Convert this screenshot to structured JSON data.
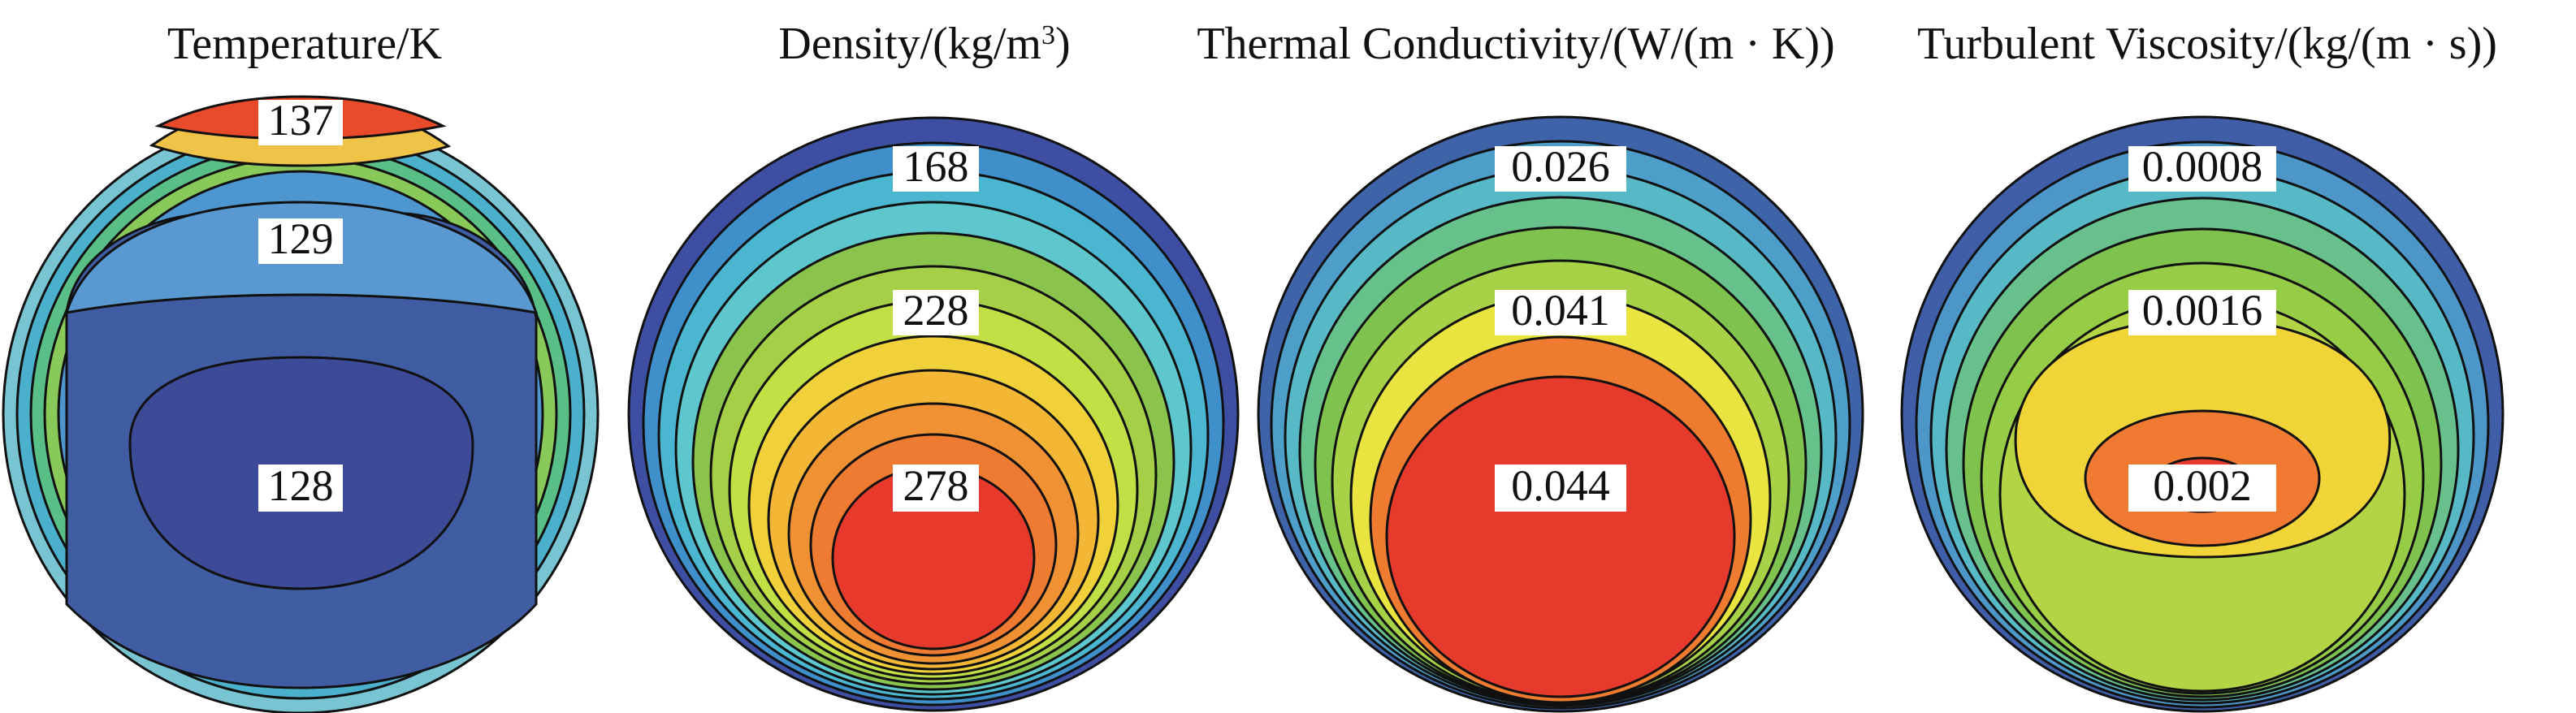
{
  "panels": [
    {
      "title_main": "Temperature/K",
      "title_sup": "",
      "title_tail": "",
      "labels": [
        "137",
        "129",
        "128"
      ],
      "colors": {
        "outer": "#7fc6d7",
        "ring1": "#e4e84b",
        "ring2": "#8ccf52",
        "ring3": "#6fc7c8",
        "ring4": "#4e96cf",
        "ring5": "#3f5ca3",
        "core": "#3d4a97",
        "hot": "#e84a2b"
      }
    },
    {
      "title_main": "Density/(kg/m",
      "title_sup": "3",
      "title_tail": ")",
      "labels": [
        "168",
        "228",
        "278"
      ],
      "colors": {
        "outer": "#3e4fa3",
        "ring1": "#3f8fcb",
        "ring2": "#5ec7ce",
        "ring3": "#8ac44d",
        "ring4": "#b9db45",
        "ring5": "#f0d13a",
        "core": "#e83a2c",
        "hot": "#ef7a31"
      }
    },
    {
      "title_main": "Thermal Conductivity/(W/(m · K))",
      "title_sup": "",
      "title_tail": "",
      "labels": [
        "0.026",
        "0.041",
        "0.044"
      ],
      "colors": {
        "outer": "#3e63a9",
        "ring1": "#57b9c5",
        "ring2": "#7fc34e",
        "ring3": "#a7d248",
        "ring4": "#e9e43f",
        "ring5": "#ee7b30",
        "core": "#e63a2c",
        "hot": "#e63a2c"
      }
    },
    {
      "title_main": "Turbulent Viscosity/(kg/(m · s))",
      "title_sup": "",
      "title_tail": "",
      "labels": [
        "0.0008",
        "0.0016",
        "0.002"
      ],
      "colors": {
        "outer": "#405ea8",
        "ring1": "#57b9c5",
        "ring2": "#7fc34e",
        "ring3": "#b3d545",
        "ring4": "#f1d438",
        "ring5": "#f07a31",
        "core": "#e63a2c",
        "hot": "#e63a2c"
      }
    }
  ]
}
